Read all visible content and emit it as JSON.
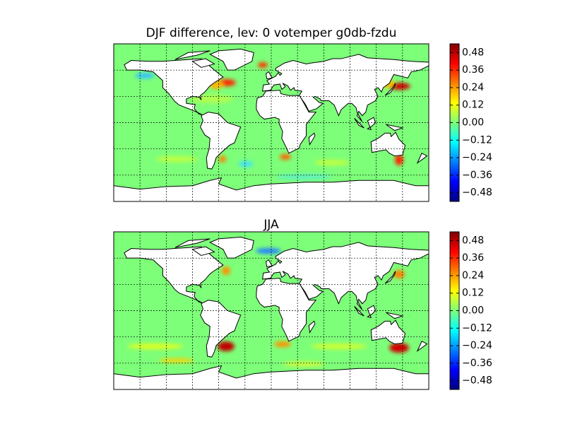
{
  "panels": [
    {
      "title": "DJF difference, lev: 0 votemper g0db-fzdu",
      "colorbar": {
        "lim": [
          -0.54,
          0.54
        ],
        "ticks": [
          {
            "value": 0.48,
            "label": "0.48"
          },
          {
            "value": 0.36,
            "label": "0.36"
          },
          {
            "value": 0.24,
            "label": "0.24"
          },
          {
            "value": 0.12,
            "label": "0.12"
          },
          {
            "value": 0,
            "label": "0.00"
          },
          {
            "value": -0.12,
            "label": "−0.12"
          },
          {
            "value": -0.24,
            "label": "−0.24"
          },
          {
            "value": -0.36,
            "label": "−0.36"
          },
          {
            "value": -0.48,
            "label": "−0.48"
          }
        ]
      }
    },
    {
      "title": "JJA",
      "colorbar": {
        "lim": [
          -0.54,
          0.54
        ],
        "ticks": [
          {
            "value": 0.48,
            "label": "0.48"
          },
          {
            "value": 0.36,
            "label": "0.36"
          },
          {
            "value": 0.24,
            "label": "0.24"
          },
          {
            "value": 0.12,
            "label": "0.12"
          },
          {
            "value": 0,
            "label": "0.00"
          },
          {
            "value": -0.12,
            "label": "−0.12"
          },
          {
            "value": -0.24,
            "label": "−0.24"
          },
          {
            "value": -0.36,
            "label": "−0.36"
          },
          {
            "value": -0.48,
            "label": "−0.48"
          }
        ]
      }
    }
  ]
}
